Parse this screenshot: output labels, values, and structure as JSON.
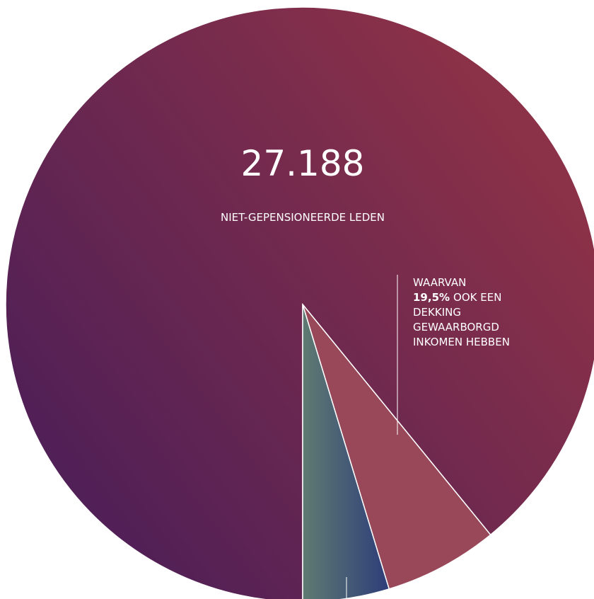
{
  "chart_data": {
    "type": "pie",
    "categories": [
      "NIET-GEPENSIONEERDE LEDEN",
      null,
      null
    ],
    "values": [
      89.1,
      6.2,
      4.7
    ],
    "colors": [
      [
        "#4e1f57",
        "#8b3148"
      ],
      [
        "#984858",
        "#984858"
      ],
      [
        "#5f7b72",
        "#2e3d79"
      ]
    ],
    "annotations": {
      "big_number": "27.188",
      "callout": {
        "line1": "WAARVAN",
        "bold": "19,5%",
        "line2": "OOK EEN",
        "line3": "DEKKING",
        "line4": "GEWAARBORGD",
        "line5": "INKOMEN HEBBEN"
      }
    }
  }
}
